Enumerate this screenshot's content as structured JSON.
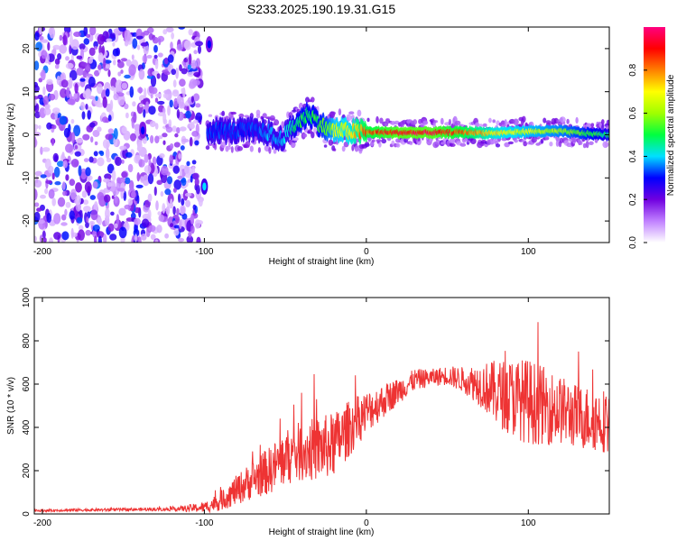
{
  "title": "S233.2025.190.19.31.G15",
  "chart_data": [
    {
      "type": "heatmap",
      "xlabel": "Height of straight line (km)",
      "ylabel": "Frequency (Hz)",
      "xlim": [
        -205,
        150
      ],
      "ylim": [
        -25,
        25
      ],
      "xticks": [
        -200,
        -100,
        0,
        100
      ],
      "yticks": [
        -20,
        -10,
        0,
        10,
        20
      ],
      "colorbar": {
        "label": "Normalized spectral amplitude",
        "range": [
          0,
          1
        ],
        "ticks": [
          "0.0",
          "0.2",
          "0.4",
          "0.6",
          "0.8"
        ],
        "colormap": [
          "#ffffff",
          "#c080ff",
          "#7000e0",
          "#0000ff",
          "#00e0ff",
          "#00ff40",
          "#a0ff00",
          "#ffff00",
          "#ff8000",
          "#ff0000",
          "#ff0080"
        ]
      },
      "ridge": {
        "x": [
          -98,
          -90,
          -80,
          -70,
          -60,
          -55,
          -50,
          -45,
          -40,
          -35,
          -30,
          -25,
          -20,
          -10,
          0,
          20,
          40,
          60,
          80,
          100,
          120,
          140,
          150
        ],
        "y": [
          1.0,
          1.0,
          0.8,
          1.0,
          0.5,
          -1.5,
          0.0,
          2.0,
          3.5,
          5.0,
          3.0,
          1.5,
          1.0,
          0.8,
          0.6,
          0.5,
          0.5,
          0.6,
          0.4,
          0.8,
          0.8,
          0.2,
          0.0
        ],
        "amplitude": [
          0.35,
          0.35,
          0.35,
          0.35,
          0.4,
          0.4,
          0.45,
          0.5,
          0.55,
          0.55,
          0.55,
          0.6,
          0.7,
          0.75,
          0.9,
          1.0,
          1.0,
          0.9,
          0.75,
          0.7,
          0.65,
          0.55,
          0.5
        ]
      },
      "noise_region_x": [
        -205,
        -102
      ],
      "features": [
        {
          "x": -97,
          "y": 21,
          "amplitude": 0.3
        },
        {
          "x": -100,
          "y": -12,
          "amplitude": 0.4
        },
        {
          "x": -138,
          "y": 1,
          "amplitude": 0.3
        }
      ]
    },
    {
      "type": "line",
      "xlabel": "Height of straight line (km)",
      "ylabel": "SNR (10 * v/v)",
      "xlim": [
        -205,
        150
      ],
      "ylim": [
        0,
        1000
      ],
      "xticks": [
        -200,
        -100,
        0,
        100
      ],
      "yticks": [
        0,
        200,
        400,
        600,
        800,
        1000
      ],
      "color": "#ee3333",
      "series": [
        {
          "x": [
            -205,
            -180,
            -150,
            -120,
            -100,
            -90,
            -80,
            -70,
            -60,
            -50,
            -40,
            -30,
            -20,
            -10,
            0,
            10,
            20,
            30,
            40,
            50,
            60,
            70,
            80,
            90,
            100,
            110,
            120,
            130,
            140,
            150
          ],
          "y": [
            15,
            18,
            20,
            22,
            30,
            60,
            110,
            160,
            200,
            260,
            290,
            300,
            320,
            400,
            470,
            520,
            570,
            620,
            630,
            640,
            620,
            600,
            560,
            540,
            520,
            500,
            480,
            450,
            440,
            430
          ],
          "noise": [
            5,
            6,
            7,
            8,
            25,
            45,
            70,
            90,
            110,
            130,
            140,
            150,
            150,
            130,
            100,
            80,
            60,
            50,
            40,
            45,
            60,
            100,
            150,
            180,
            200,
            180,
            160,
            150,
            150,
            150
          ]
        }
      ]
    }
  ]
}
